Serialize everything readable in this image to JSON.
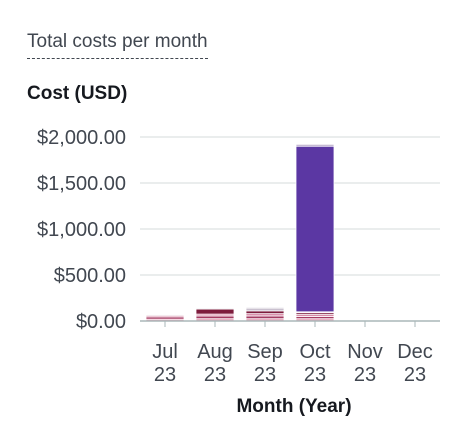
{
  "widget": {
    "title": "Total costs per month"
  },
  "chart_data": {
    "type": "bar",
    "stacked": true,
    "ylabel": "Cost (USD)",
    "xlabel": "Month (Year)",
    "categories": [
      [
        "Jul",
        "23"
      ],
      [
        "Aug",
        "23"
      ],
      [
        "Sep",
        "23"
      ],
      [
        "Oct",
        "23"
      ],
      [
        "Nov",
        "23"
      ],
      [
        "Dec",
        "23"
      ]
    ],
    "ylim": [
      0,
      2000
    ],
    "yticks": [
      0,
      500,
      1000,
      1500,
      2000
    ],
    "ytick_labels": [
      "$0.00",
      "$500.00",
      "$1,000.00",
      "$1,500.00",
      "$2,000.00"
    ],
    "grid": true,
    "series": [
      {
        "color": "#e7a2b8",
        "values": [
          20,
          25,
          25,
          25,
          0,
          0
        ]
      },
      {
        "color": "#a63b63",
        "values": [
          25,
          30,
          30,
          25,
          0,
          0
        ]
      },
      {
        "color": "#d88aa8",
        "values": [
          15,
          20,
          25,
          20,
          0,
          0
        ]
      },
      {
        "color": "#7d1c3d",
        "values": [
          10,
          55,
          30,
          20,
          0,
          0
        ]
      },
      {
        "color": "#c9c0cf",
        "values": [
          5,
          10,
          30,
          10,
          0,
          0
        ]
      },
      {
        "color": "#5b37a3",
        "values": [
          0,
          0,
          0,
          1800,
          0,
          0
        ]
      },
      {
        "color": "#b7aac8",
        "values": [
          5,
          5,
          10,
          20,
          0,
          0
        ]
      }
    ]
  }
}
